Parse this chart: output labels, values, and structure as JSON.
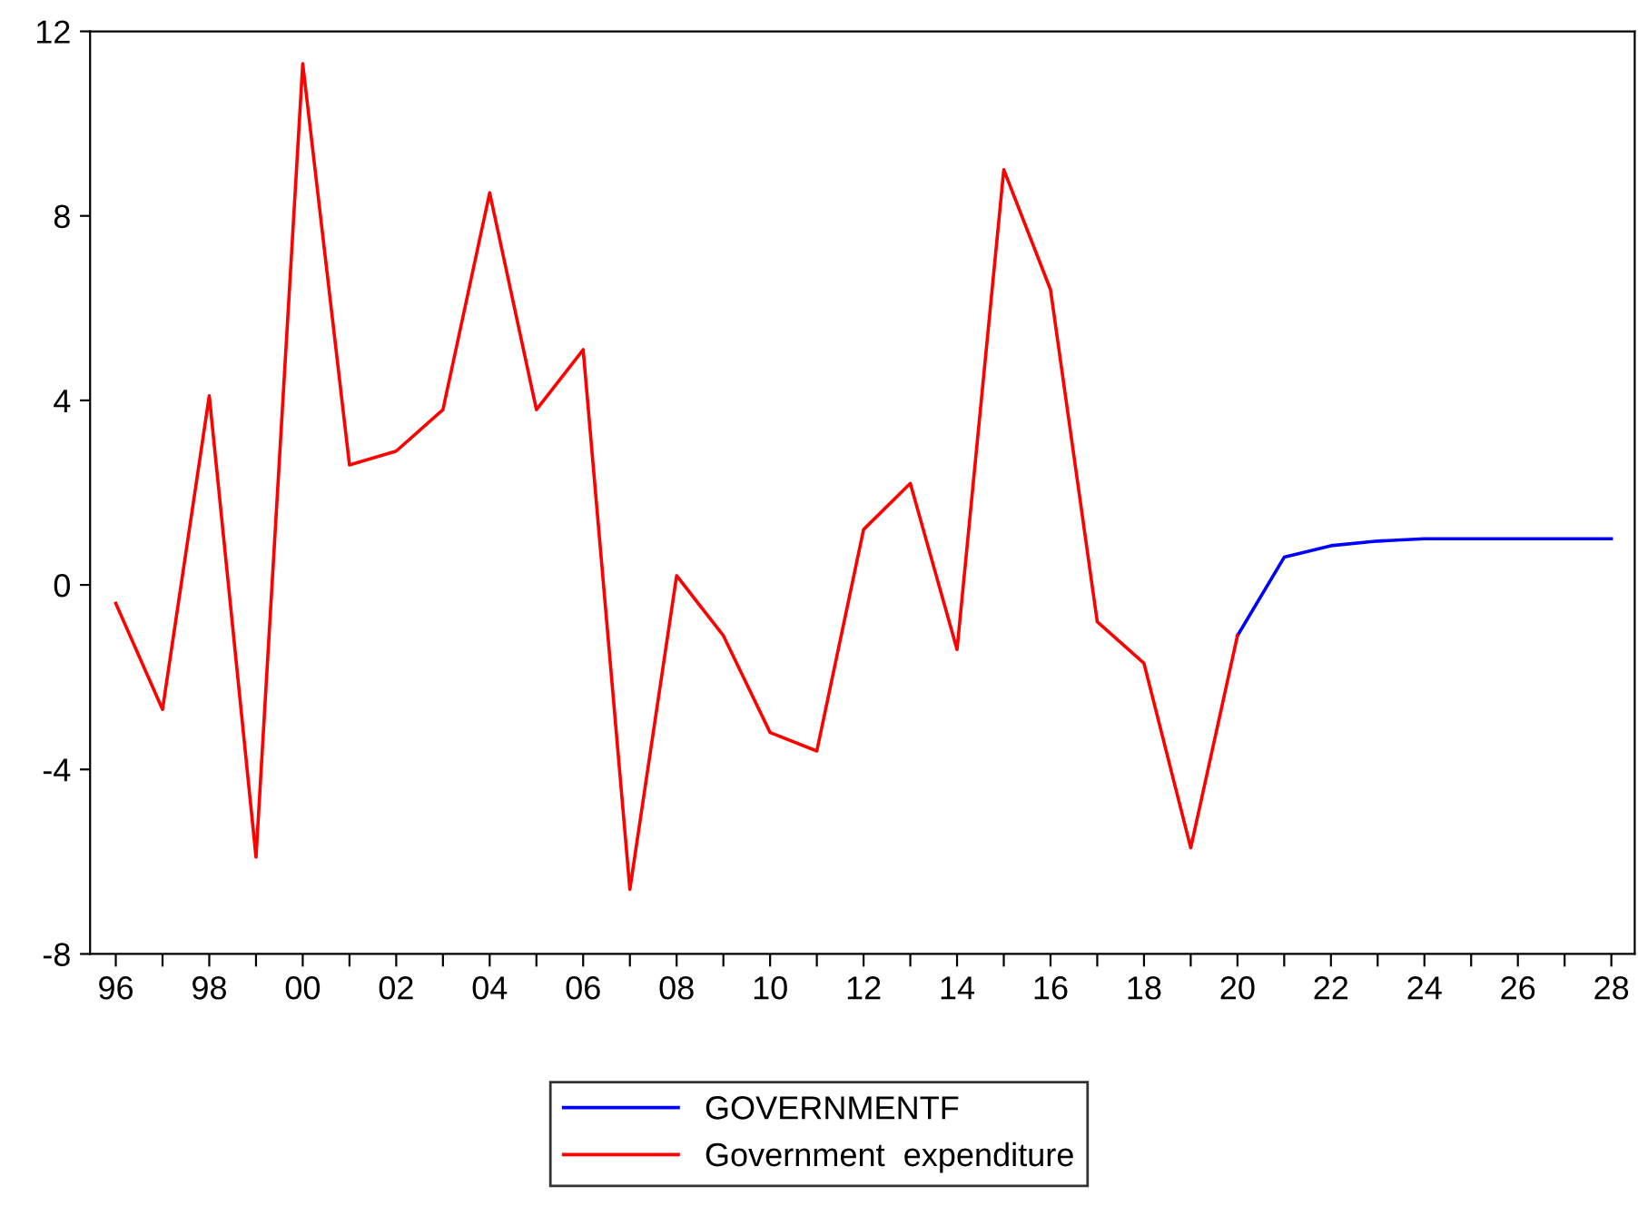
{
  "chart_data": {
    "type": "line",
    "x": [
      1996,
      1997,
      1998,
      1999,
      2000,
      2001,
      2002,
      2003,
      2004,
      2005,
      2006,
      2007,
      2008,
      2009,
      2010,
      2011,
      2012,
      2013,
      2014,
      2015,
      2016,
      2017,
      2018,
      2019,
      2020,
      2021,
      2022,
      2023,
      2024,
      2025,
      2026,
      2027,
      2028
    ],
    "series": [
      {
        "name": "GOVERNMENTF",
        "color": "#0000ff",
        "values": [
          null,
          null,
          null,
          null,
          null,
          null,
          null,
          null,
          null,
          null,
          null,
          null,
          null,
          null,
          null,
          null,
          null,
          null,
          null,
          null,
          null,
          null,
          null,
          null,
          -1.1,
          0.6,
          0.85,
          0.95,
          1.0,
          1.0,
          1.0,
          1.0,
          1.0
        ]
      },
      {
        "name": "Government  expenditure",
        "color": "#ff0000",
        "values": [
          -0.4,
          -2.7,
          4.1,
          -5.9,
          11.3,
          2.6,
          2.9,
          3.8,
          8.5,
          3.8,
          5.1,
          -6.6,
          0.2,
          -1.1,
          -3.2,
          -3.6,
          1.2,
          2.2,
          -1.4,
          9.0,
          6.4,
          -0.8,
          -1.7,
          -5.7,
          -1.1,
          null,
          null,
          null,
          null,
          null,
          null,
          null,
          null
        ]
      }
    ],
    "xlim": [
      1995.45,
      2028.5
    ],
    "xticks": [
      {
        "value": 1996,
        "label": "96"
      },
      {
        "value": 1997,
        "label": null
      },
      {
        "value": 1998,
        "label": "98"
      },
      {
        "value": 1999,
        "label": null
      },
      {
        "value": 2000,
        "label": "00"
      },
      {
        "value": 2001,
        "label": null
      },
      {
        "value": 2002,
        "label": "02"
      },
      {
        "value": 2003,
        "label": null
      },
      {
        "value": 2004,
        "label": "04"
      },
      {
        "value": 2005,
        "label": null
      },
      {
        "value": 2006,
        "label": "06"
      },
      {
        "value": 2007,
        "label": null
      },
      {
        "value": 2008,
        "label": "08"
      },
      {
        "value": 2009,
        "label": null
      },
      {
        "value": 2010,
        "label": "10"
      },
      {
        "value": 2011,
        "label": null
      },
      {
        "value": 2012,
        "label": "12"
      },
      {
        "value": 2013,
        "label": null
      },
      {
        "value": 2014,
        "label": "14"
      },
      {
        "value": 2015,
        "label": null
      },
      {
        "value": 2016,
        "label": "16"
      },
      {
        "value": 2017,
        "label": null
      },
      {
        "value": 2018,
        "label": "18"
      },
      {
        "value": 2019,
        "label": null
      },
      {
        "value": 2020,
        "label": "20"
      },
      {
        "value": 2021,
        "label": null
      },
      {
        "value": 2022,
        "label": "22"
      },
      {
        "value": 2023,
        "label": null
      },
      {
        "value": 2024,
        "label": "24"
      },
      {
        "value": 2025,
        "label": null
      },
      {
        "value": 2026,
        "label": "26"
      },
      {
        "value": 2027,
        "label": null
      },
      {
        "value": 2028,
        "label": "28"
      }
    ],
    "ylim": [
      -8,
      12
    ],
    "yticks": [
      {
        "value": -8,
        "label": "-8"
      },
      {
        "value": -4,
        "label": "-4"
      },
      0,
      4,
      8,
      12
    ],
    "grid": false,
    "legend": "bottom",
    "marker": "none",
    "line_style": "solid"
  }
}
